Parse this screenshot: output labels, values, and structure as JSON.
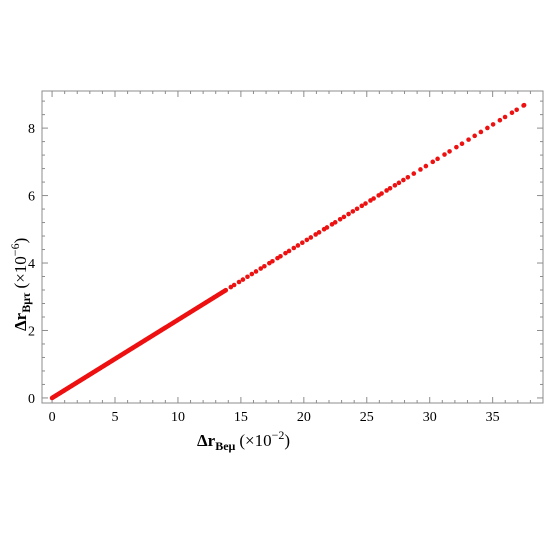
{
  "chart_data": {
    "type": "scatter",
    "title": "",
    "xlabel": {
      "base": "Δr",
      "subscript": "Beμ",
      "factor": "(×10",
      "exponent": "−2",
      "close": ")"
    },
    "ylabel": {
      "base": "Δr",
      "subscript": "Bμτ",
      "factor": "(×10",
      "exponent": "−6",
      "close": ")"
    },
    "xlim": [
      -0.8,
      39
    ],
    "ylim": [
      -0.15,
      9.1
    ],
    "x_ticks": [
      0,
      5,
      10,
      15,
      20,
      25,
      30,
      35
    ],
    "y_ticks": [
      0,
      2,
      4,
      6,
      8
    ],
    "grid": false,
    "legend": "none",
    "color": "#ee1111",
    "series": [
      {
        "name": "",
        "relation": "linear",
        "x_dense_range": [
          0,
          13.8
        ],
        "x_sparse_range": [
          13.8,
          37.5
        ],
        "y_at_x_min": 0,
        "y_at_x_max": 8.68
      }
    ]
  }
}
